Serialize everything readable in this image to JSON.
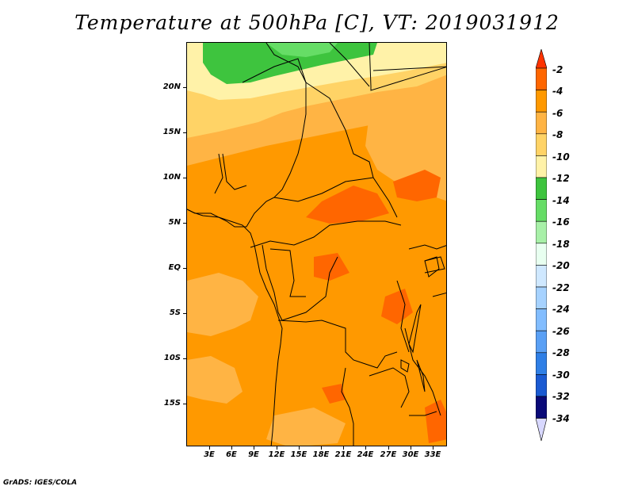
{
  "title": "Temperature at 500hPa [C], VT: 2019031912",
  "footer": "GrADS: IGES/COLA",
  "map": {
    "lat_range": [
      -20,
      24
    ],
    "lon_range": [
      -1,
      34
    ],
    "y_ticks": [
      "20N",
      "15N",
      "10N",
      "5N",
      "EQ",
      "5S",
      "10S",
      "15S"
    ],
    "x_ticks": [
      "3E",
      "6E",
      "9E",
      "12E",
      "15E",
      "18E",
      "21E",
      "24E",
      "27E",
      "30E",
      "33E"
    ]
  },
  "colorbar": {
    "labels": [
      "-2",
      "-4",
      "-6",
      "-8",
      "-10",
      "-12",
      "-14",
      "-16",
      "-18",
      "-20",
      "-22",
      "-24",
      "-26",
      "-28",
      "-30",
      "-32",
      "-34"
    ],
    "colors": [
      "#ff3300",
      "#ff6600",
      "#ff9900",
      "#ffb444",
      "#ffd366",
      "#fff2a8",
      "#3ec43e",
      "#66dd66",
      "#a8f0a8",
      "#e8fff0",
      "#cfe8ff",
      "#a6d2ff",
      "#82bdff",
      "#5aa0f5",
      "#2f7fe6",
      "#1a5ad2",
      "#0a2ab0",
      "#0a0a78",
      "#d8d8ff"
    ]
  }
}
